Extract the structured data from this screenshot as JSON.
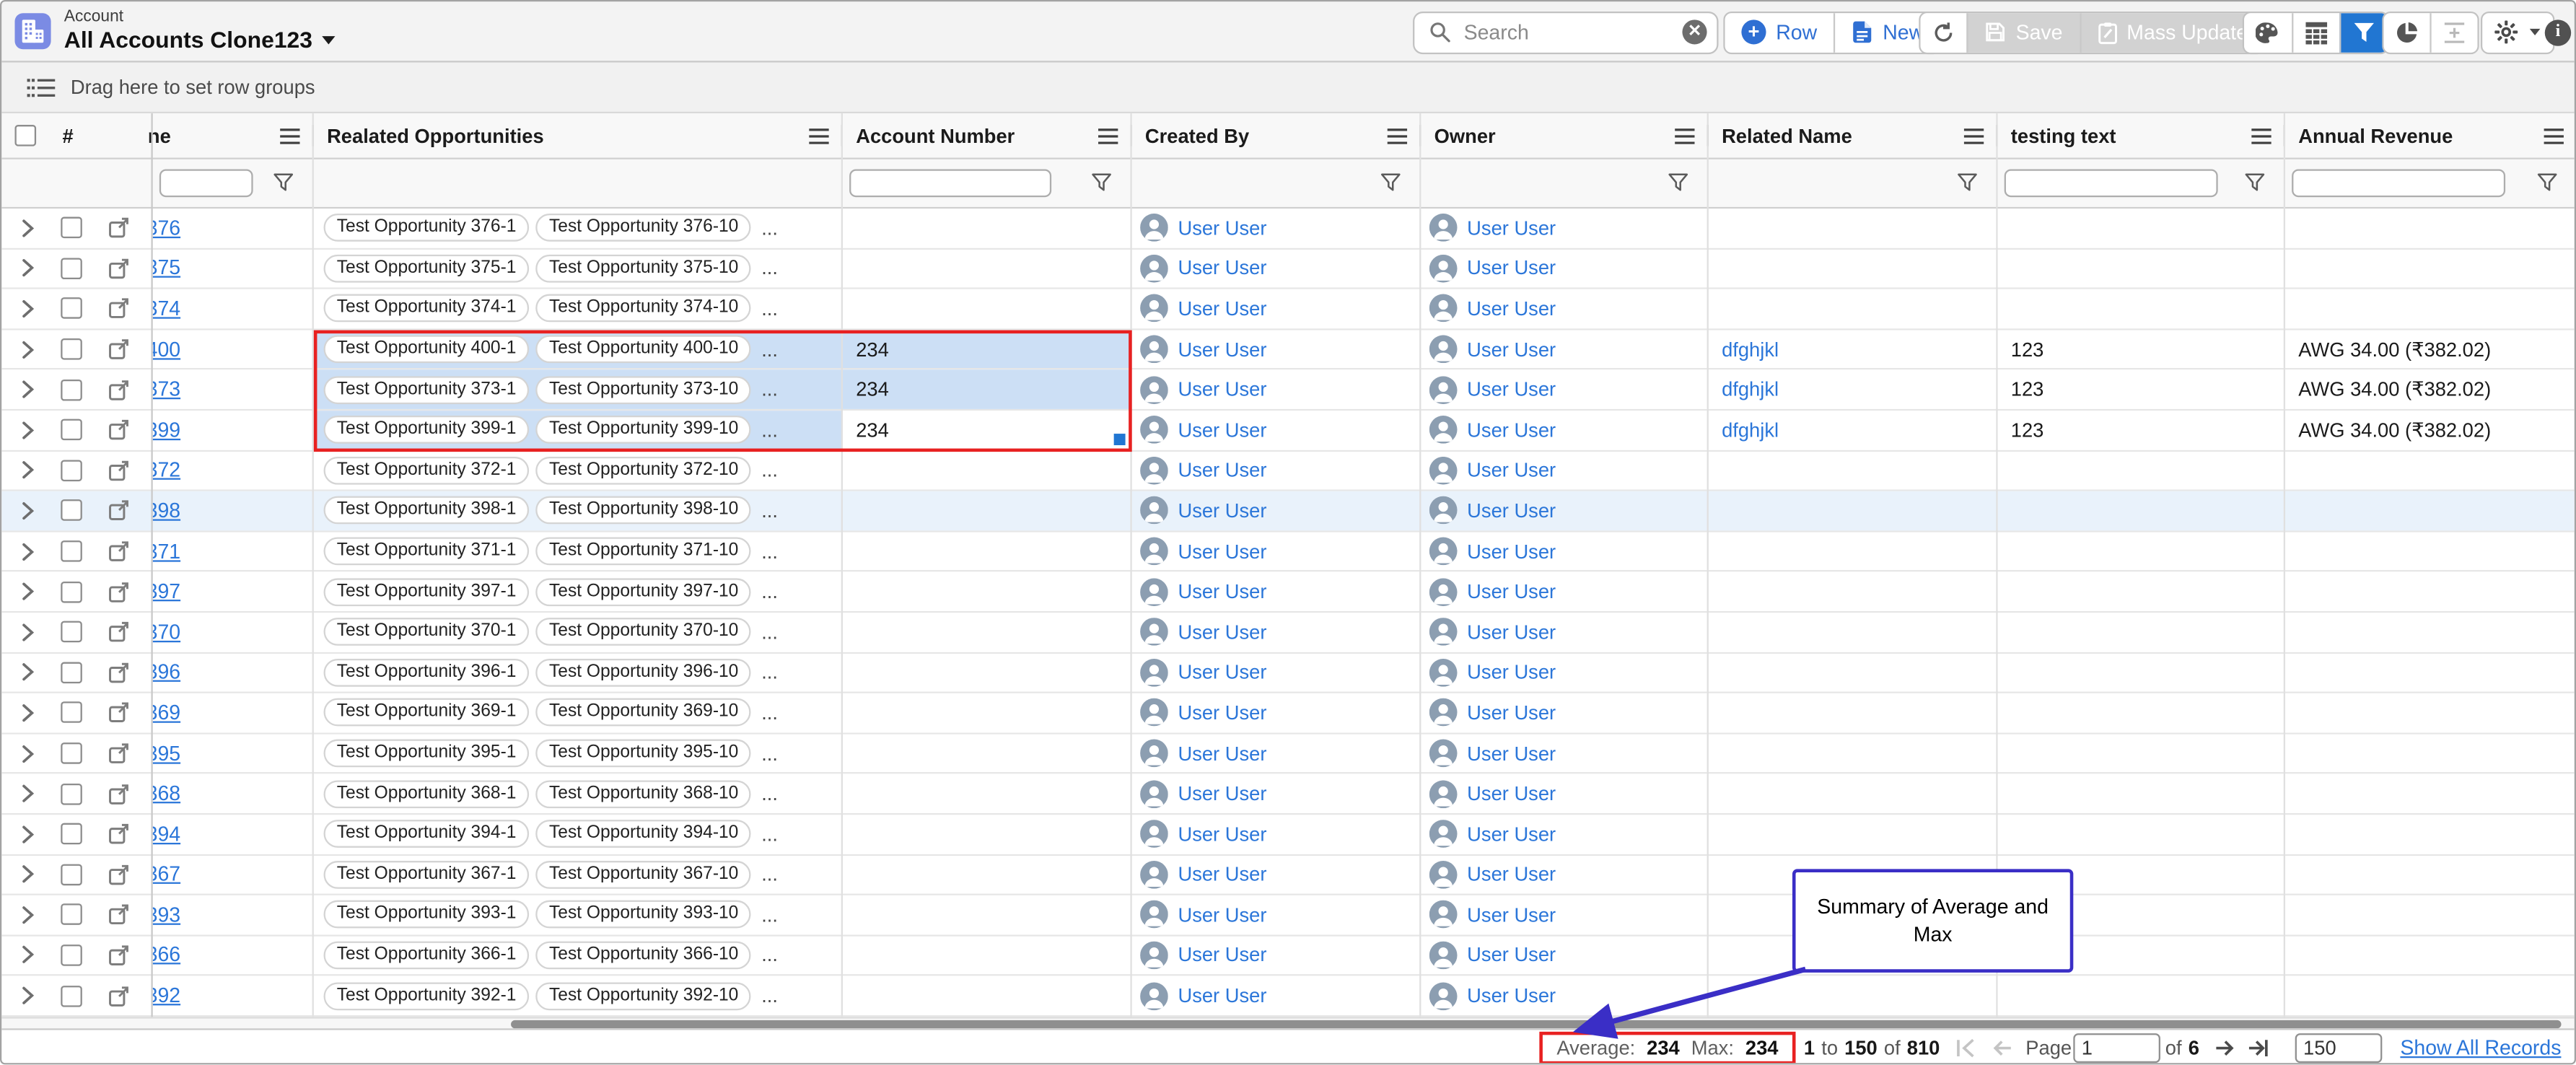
{
  "window": {
    "object_label": "Account",
    "view_title": "All Accounts Clone123"
  },
  "toolbar": {
    "search_placeholder": "Search",
    "row_button": "Row",
    "new_button": "New",
    "save_button": "Save",
    "mass_update_button": "Mass Update"
  },
  "group_bar": {
    "text": "Drag here to set row groups"
  },
  "table": {
    "more_indicator": "...",
    "columns": [
      {
        "label": "#"
      },
      {
        "label": "ne"
      },
      {
        "label": "Realated Opportunities"
      },
      {
        "label": "Account Number"
      },
      {
        "label": "Created By"
      },
      {
        "label": "Owner"
      },
      {
        "label": "Related Name"
      },
      {
        "label": "testing text"
      },
      {
        "label": "Annual Revenue"
      }
    ],
    "rows": [
      {
        "num": "376",
        "opportunity_1": "Test Opportunity 376-1",
        "opportunity_2": "Test Opportunity 376-10",
        "account_number": "",
        "created_by": "User User",
        "owner": "User User",
        "related_name": "",
        "testing_text": "",
        "annual_revenue": "",
        "state": ""
      },
      {
        "num": "375",
        "opportunity_1": "Test Opportunity 375-1",
        "opportunity_2": "Test Opportunity 375-10",
        "account_number": "",
        "created_by": "User User",
        "owner": "User User",
        "related_name": "",
        "testing_text": "",
        "annual_revenue": "",
        "state": ""
      },
      {
        "num": "374",
        "opportunity_1": "Test Opportunity 374-1",
        "opportunity_2": "Test Opportunity 374-10",
        "account_number": "",
        "created_by": "User User",
        "owner": "User User",
        "related_name": "",
        "testing_text": "",
        "annual_revenue": "",
        "state": ""
      },
      {
        "num": "400",
        "opportunity_1": "Test Opportunity 400-1",
        "opportunity_2": "Test Opportunity 400-10",
        "account_number": "234",
        "created_by": "User User",
        "owner": "User User",
        "related_name": "dfghjkl",
        "testing_text": "123",
        "annual_revenue": "AWG 34.00 (₹382.02)",
        "state": "range"
      },
      {
        "num": "373",
        "opportunity_1": "Test Opportunity 373-1",
        "opportunity_2": "Test Opportunity 373-10",
        "account_number": "234",
        "created_by": "User User",
        "owner": "User User",
        "related_name": "dfghjkl",
        "testing_text": "123",
        "annual_revenue": "AWG 34.00 (₹382.02)",
        "state": "range"
      },
      {
        "num": "399",
        "opportunity_1": "Test Opportunity 399-1",
        "opportunity_2": "Test Opportunity 399-10",
        "account_number": "234",
        "created_by": "User User",
        "owner": "User User",
        "related_name": "dfghjkl",
        "testing_text": "123",
        "annual_revenue": "AWG 34.00 (₹382.02)",
        "state": "range-focus"
      },
      {
        "num": "372",
        "opportunity_1": "Test Opportunity 372-1",
        "opportunity_2": "Test Opportunity 372-10",
        "account_number": "",
        "created_by": "User User",
        "owner": "User User",
        "related_name": "",
        "testing_text": "",
        "annual_revenue": "",
        "state": ""
      },
      {
        "num": "398",
        "opportunity_1": "Test Opportunity 398-1",
        "opportunity_2": "Test Opportunity 398-10",
        "account_number": "",
        "created_by": "User User",
        "owner": "User User",
        "related_name": "",
        "testing_text": "",
        "annual_revenue": "",
        "state": "hover"
      },
      {
        "num": "371",
        "opportunity_1": "Test Opportunity 371-1",
        "opportunity_2": "Test Opportunity 371-10",
        "account_number": "",
        "created_by": "User User",
        "owner": "User User",
        "related_name": "",
        "testing_text": "",
        "annual_revenue": "",
        "state": ""
      },
      {
        "num": "397",
        "opportunity_1": "Test Opportunity 397-1",
        "opportunity_2": "Test Opportunity 397-10",
        "account_number": "",
        "created_by": "User User",
        "owner": "User User",
        "related_name": "",
        "testing_text": "",
        "annual_revenue": "",
        "state": ""
      },
      {
        "num": "370",
        "opportunity_1": "Test Opportunity 370-1",
        "opportunity_2": "Test Opportunity 370-10",
        "account_number": "",
        "created_by": "User User",
        "owner": "User User",
        "related_name": "",
        "testing_text": "",
        "annual_revenue": "",
        "state": ""
      },
      {
        "num": "396",
        "opportunity_1": "Test Opportunity 396-1",
        "opportunity_2": "Test Opportunity 396-10",
        "account_number": "",
        "created_by": "User User",
        "owner": "User User",
        "related_name": "",
        "testing_text": "",
        "annual_revenue": "",
        "state": ""
      },
      {
        "num": "369",
        "opportunity_1": "Test Opportunity 369-1",
        "opportunity_2": "Test Opportunity 369-10",
        "account_number": "",
        "created_by": "User User",
        "owner": "User User",
        "related_name": "",
        "testing_text": "",
        "annual_revenue": "",
        "state": ""
      },
      {
        "num": "395",
        "opportunity_1": "Test Opportunity 395-1",
        "opportunity_2": "Test Opportunity 395-10",
        "account_number": "",
        "created_by": "User User",
        "owner": "User User",
        "related_name": "",
        "testing_text": "",
        "annual_revenue": "",
        "state": ""
      },
      {
        "num": "368",
        "opportunity_1": "Test Opportunity 368-1",
        "opportunity_2": "Test Opportunity 368-10",
        "account_number": "",
        "created_by": "User User",
        "owner": "User User",
        "related_name": "",
        "testing_text": "",
        "annual_revenue": "",
        "state": ""
      },
      {
        "num": "394",
        "opportunity_1": "Test Opportunity 394-1",
        "opportunity_2": "Test Opportunity 394-10",
        "account_number": "",
        "created_by": "User User",
        "owner": "User User",
        "related_name": "",
        "testing_text": "",
        "annual_revenue": "",
        "state": ""
      },
      {
        "num": "367",
        "opportunity_1": "Test Opportunity 367-1",
        "opportunity_2": "Test Opportunity 367-10",
        "account_number": "",
        "created_by": "User User",
        "owner": "User User",
        "related_name": "",
        "testing_text": "",
        "annual_revenue": "",
        "state": ""
      },
      {
        "num": "393",
        "opportunity_1": "Test Opportunity 393-1",
        "opportunity_2": "Test Opportunity 393-10",
        "account_number": "",
        "created_by": "User User",
        "owner": "User User",
        "related_name": "",
        "testing_text": "",
        "annual_revenue": "",
        "state": ""
      },
      {
        "num": "366",
        "opportunity_1": "Test Opportunity 366-1",
        "opportunity_2": "Test Opportunity 366-10",
        "account_number": "",
        "created_by": "User User",
        "owner": "User User",
        "related_name": "",
        "testing_text": "",
        "annual_revenue": "",
        "state": ""
      },
      {
        "num": "392",
        "opportunity_1": "Test Opportunity 392-1",
        "opportunity_2": "Test Opportunity 392-10",
        "account_number": "",
        "created_by": "User User",
        "owner": "User User",
        "related_name": "",
        "testing_text": "",
        "annual_revenue": "",
        "state": ""
      }
    ]
  },
  "footer": {
    "average_label": "Average:",
    "average_value": "234",
    "max_label": "Max:",
    "max_value": "234",
    "range_start": "1",
    "range_to": "to",
    "range_end": "150",
    "range_of": "of",
    "range_total": "810",
    "page_label": "Page",
    "page_value": "1",
    "of_label": "of",
    "total_pages": "6",
    "page_size_value": "150",
    "show_all_label": "Show All Records"
  },
  "annotation": {
    "text": "Summary of Average and Max"
  },
  "colors": {
    "accent_blue": "#2f6fd3",
    "link_blue": "#2b76d9",
    "filter_active_blue": "#2176d2",
    "selection_red": "#e82121",
    "annotation_indigo": "#3a2ec6",
    "selected_cell_bg": "#ccdff5",
    "hover_row_bg": "#e9f2fb",
    "avatar_gray": "#8c9eb1"
  }
}
